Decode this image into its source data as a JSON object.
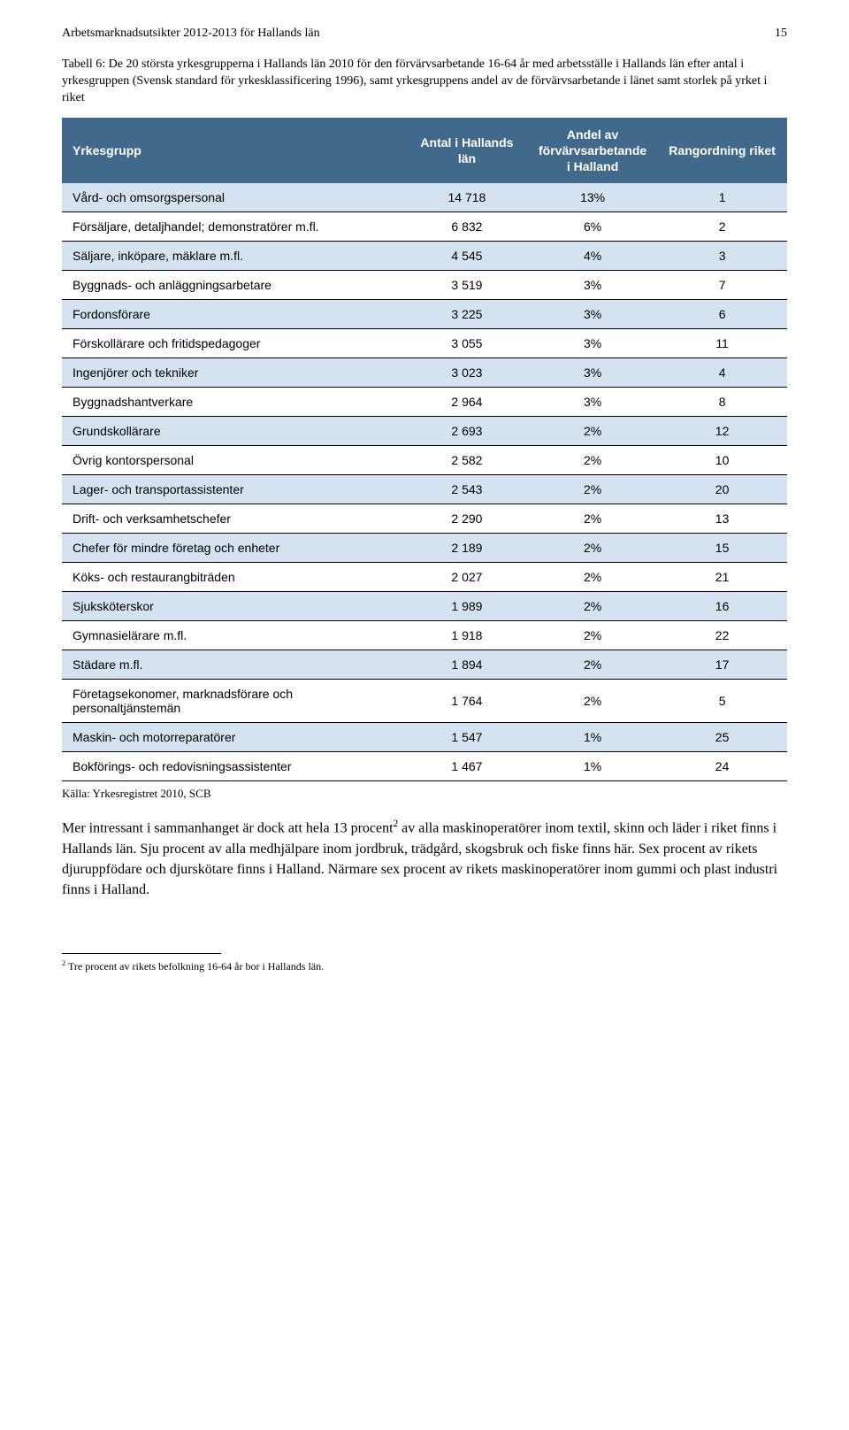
{
  "header": {
    "title": "Arbetsmarknadsutsikter 2012-2013 för Hallands län",
    "page_number": "15"
  },
  "caption": "Tabell 6: De 20 största yrkesgrupperna i Hallands län 2010 för den förvärvsarbetande 16-64 år med arbetsställe i Hallands län efter antal i yrkesgruppen (Svensk standard för yrkesklassificering 1996), samt yrkesgruppens andel av de förvärvsarbetande i länet samt storlek på yrket i riket",
  "table": {
    "columns": [
      "Yrkesgrupp",
      "Antal i Hallands län",
      "Andel av förvärvsarbetande i Halland",
      "Rangordning riket"
    ],
    "rows": [
      [
        "Vård- och omsorgspersonal",
        "14 718",
        "13%",
        "1"
      ],
      [
        "Försäljare, detaljhandel; demonstratörer m.fl.",
        "6 832",
        "6%",
        "2"
      ],
      [
        "Säljare, inköpare, mäklare m.fl.",
        "4 545",
        "4%",
        "3"
      ],
      [
        "Byggnads- och anläggningsarbetare",
        "3 519",
        "3%",
        "7"
      ],
      [
        "Fordonsförare",
        "3 225",
        "3%",
        "6"
      ],
      [
        "Förskollärare och fritidspedagoger",
        "3 055",
        "3%",
        "11"
      ],
      [
        "Ingenjörer och tekniker",
        "3 023",
        "3%",
        "4"
      ],
      [
        "Byggnadshantverkare",
        "2 964",
        "3%",
        "8"
      ],
      [
        "Grundskollärare",
        "2 693",
        "2%",
        "12"
      ],
      [
        "Övrig kontorspersonal",
        "2 582",
        "2%",
        "10"
      ],
      [
        "Lager- och transportassistenter",
        "2 543",
        "2%",
        "20"
      ],
      [
        "Drift- och verksamhetschefer",
        "2 290",
        "2%",
        "13"
      ],
      [
        "Chefer för mindre företag och enheter",
        "2 189",
        "2%",
        "15"
      ],
      [
        "Köks- och restaurangbiträden",
        "2 027",
        "2%",
        "21"
      ],
      [
        "Sjuksköterskor",
        "1 989",
        "2%",
        "16"
      ],
      [
        "Gymnasielärare m.fl.",
        "1 918",
        "2%",
        "22"
      ],
      [
        "Städare m.fl.",
        "1 894",
        "2%",
        "17"
      ],
      [
        "Företagsekonomer, marknadsförare och personaltjänstemän",
        "1 764",
        "2%",
        "5"
      ],
      [
        "Maskin- och motorreparatörer",
        "1 547",
        "1%",
        "25"
      ],
      [
        "Bokförings- och redovisningsassistenter",
        "1 467",
        "1%",
        "24"
      ]
    ],
    "header_bg": "#40698c",
    "header_fg": "#ffffff",
    "row_odd_bg": "#d4e3ef",
    "row_even_bg": "#ffffff",
    "border_color": "#000000"
  },
  "source": "Källa: Yrkesregistret 2010, SCB",
  "body_paragraph_pre": "Mer intressant i sammanhanget är dock att hela 13 procent",
  "body_paragraph_sup": "2",
  "body_paragraph_post": " av alla maskinoperatörer inom textil, skinn och läder i riket finns i Hallands län. Sju procent av alla medhjälpare inom jordbruk, trädgård, skogsbruk och fiske finns här. Sex procent av rikets djuruppfödare och djurskötare finns i Halland. Närmare sex procent av rikets maskinoperatörer inom gummi och plast industri finns i Halland.",
  "footnote_sup": "2",
  "footnote_text": " Tre procent av rikets befolkning 16-64 år bor i Hallands län."
}
